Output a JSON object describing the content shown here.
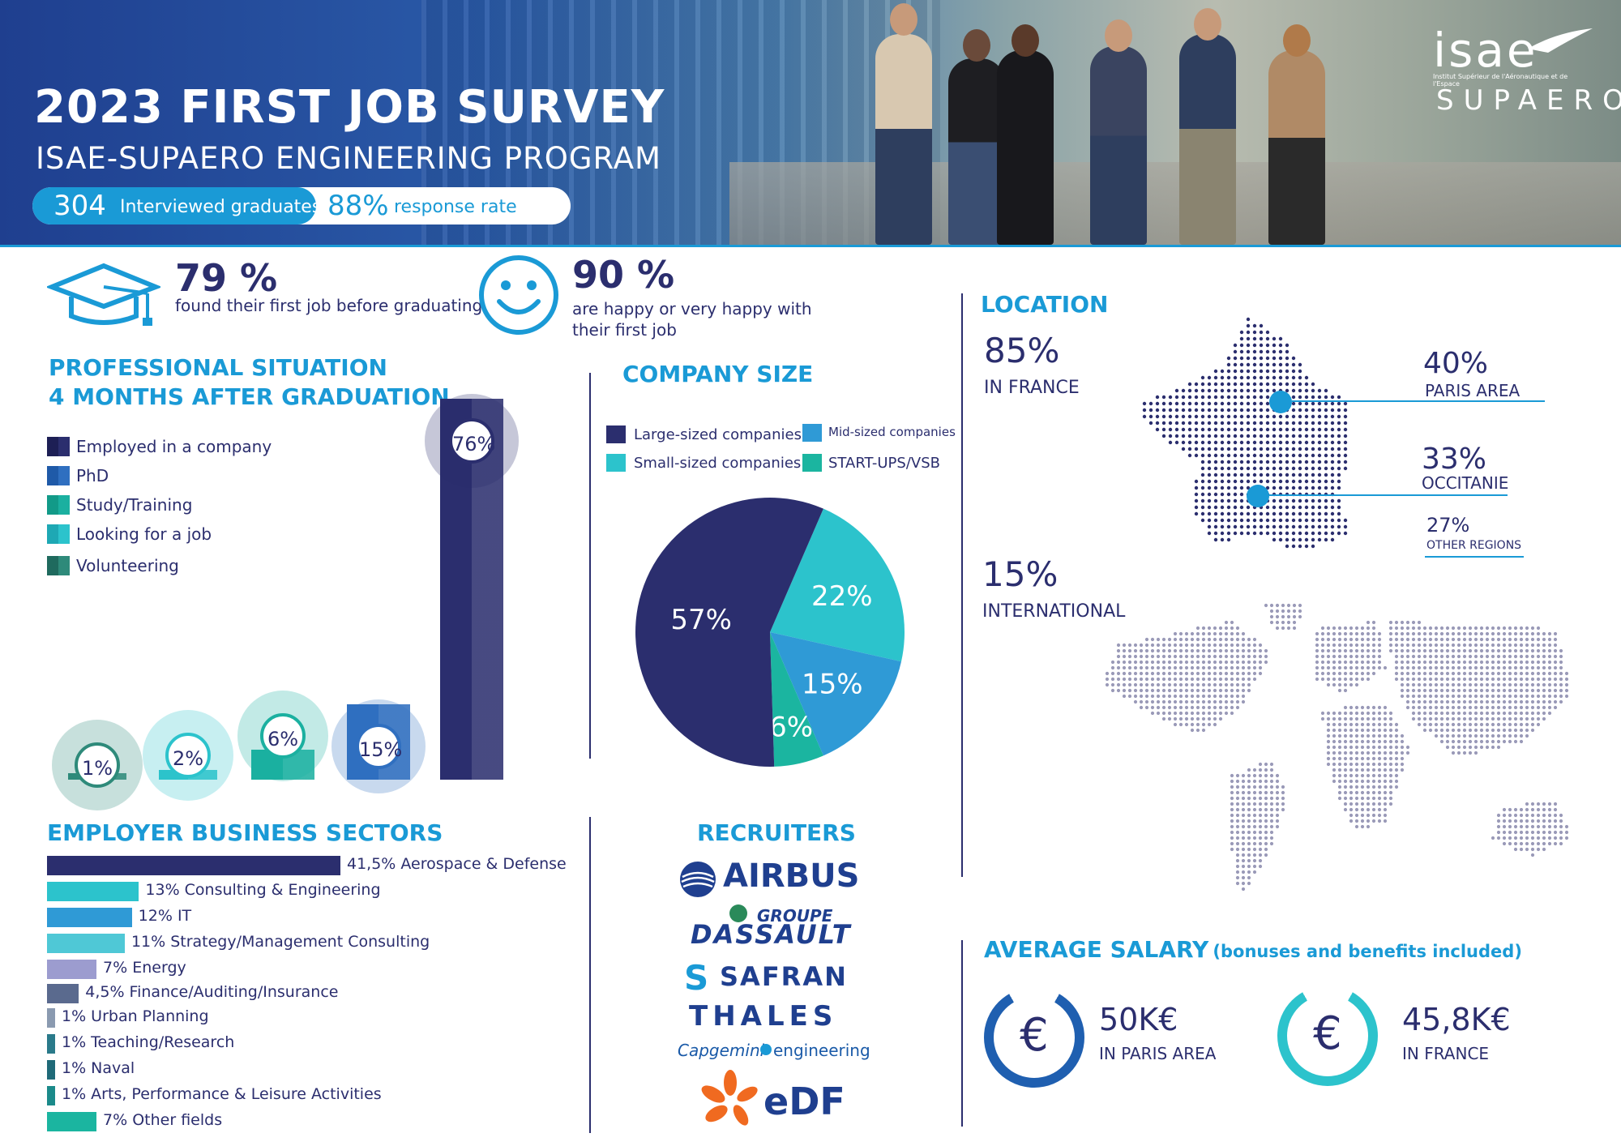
{
  "header": {
    "title": "2023 FIRST JOB SURVEY",
    "subtitle": "ISAE-SUPAERO ENGINEERING PROGRAM",
    "graduates_num": "304",
    "graduates_label": "Interviewed graduates",
    "response_num": "88%",
    "response_label": "response rate",
    "logo_top": "isae",
    "logo_small": "Institut Supérieur de l'Aéronautique et de l'Espace",
    "logo_bottom": "SUPAERO"
  },
  "key_stats": [
    {
      "value": "79 %",
      "label": "found their first job before graduating",
      "icon": "graduation-cap-icon"
    },
    {
      "value": "90 %",
      "label": "are happy or very happy with their first job",
      "icon": "smiley-face-icon"
    }
  ],
  "professional_situation": {
    "heading_line1": "PROFESSIONAL SITUATION",
    "heading_line2": "4 MONTHS AFTER GRADUATION",
    "legend": [
      "Employed in a company",
      "PhD",
      "Study/Training",
      "Looking for a job",
      "Volunteering"
    ],
    "colors": [
      "#2b2e6e",
      "#2f6fc0",
      "#1bb0a0",
      "#2cc3cc",
      "#2e8a7a"
    ]
  },
  "chart_data": [
    {
      "type": "bar",
      "categories": [
        "Employed in a company",
        "PhD",
        "Study/Training",
        "Looking for a job",
        "Volunteering"
      ],
      "values": [
        76,
        15,
        6,
        2,
        1
      ],
      "labels": [
        "76%",
        "15%",
        "6%",
        "2%",
        "1%"
      ],
      "title": "PROFESSIONAL SITUATION 4 MONTHS AFTER GRADUATION"
    },
    {
      "type": "pie",
      "categories": [
        "Large-sized companies",
        "Small-sized companies",
        "Mid-sized companies",
        "START-UPS/VSB"
      ],
      "values": [
        57,
        22,
        15,
        6
      ],
      "labels": [
        "57%",
        "22%",
        "15%",
        "6%"
      ],
      "colors": [
        "#2b2e6e",
        "#2cc3cc",
        "#2f9ad6",
        "#1bb5a0"
      ],
      "title": "COMPANY SIZE"
    },
    {
      "type": "bar",
      "title": "EMPLOYER BUSINESS SECTORS",
      "categories": [
        "Aerospace & Defense",
        "Consulting & Engineering",
        "IT",
        "Strategy/Management Consulting",
        "Energy",
        "Finance/Auditing/Insurance",
        "Urban Planning",
        "Teaching/Research",
        "Naval",
        "Arts, Performance & Leisure Activities",
        "Other fields"
      ],
      "values": [
        41.5,
        13,
        12,
        11,
        7,
        4.5,
        1,
        1,
        1,
        1,
        7
      ],
      "labels": [
        "41,5%",
        "13%",
        "12%",
        "11%",
        "7%",
        "4,5%",
        "1%",
        "1%",
        "1%",
        "1%",
        "7%"
      ],
      "colors": [
        "#2b2e6e",
        "#2cc3cc",
        "#2f9ad6",
        "#4fc8d6",
        "#9c9ccf",
        "#5a6a8e",
        "#8a9ab0",
        "#2a7a8a",
        "#1f6a78",
        "#1b8a8a",
        "#1bb5a0"
      ]
    }
  ],
  "company_size": {
    "heading": "COMPANY SIZE",
    "legend": [
      "Large-sized companies",
      "Mid-sized companies",
      "Small-sized companies",
      "START-UPS/VSB"
    ]
  },
  "sectors": {
    "heading": "EMPLOYER BUSINESS SECTORS",
    "items": [
      {
        "pct": "41,5%",
        "label": "Aerospace & Defense"
      },
      {
        "pct": "13%",
        "label": "Consulting & Engineering"
      },
      {
        "pct": "12%",
        "label": "IT"
      },
      {
        "pct": "11%",
        "label": "Strategy/Management Consulting"
      },
      {
        "pct": "7%",
        "label": "Energy"
      },
      {
        "pct": "4,5%",
        "label": "Finance/Auditing/Insurance"
      },
      {
        "pct": "1%",
        "label": "Urban Planning"
      },
      {
        "pct": "1%",
        "label": "Teaching/Research"
      },
      {
        "pct": "1%",
        "label": "Naval"
      },
      {
        "pct": "1%",
        "label": "Arts, Performance & Leisure Activities"
      },
      {
        "pct": "7%",
        "label": "Other fields"
      }
    ]
  },
  "recruiters": {
    "heading": "RECRUITERS",
    "logos": [
      "AIRBUS",
      "GROUPE",
      "DASSAULT",
      "SAFRAN",
      "THALES",
      "Capgemini",
      "engineering",
      "eDF"
    ]
  },
  "location": {
    "heading": "LOCATION",
    "france_pct": "85%",
    "france_label": "IN FRANCE",
    "paris_pct": "40%",
    "paris_label": "PARIS AREA",
    "occitanie_pct": "33%",
    "occitanie_label": "OCCITANIE",
    "other_pct": "27%",
    "other_label": "OTHER REGIONS",
    "intl_pct": "15%",
    "intl_label": "INTERNATIONAL"
  },
  "salary": {
    "heading": "AVERAGE SALARY",
    "heading_note": "(bonuses and benefits included)",
    "currency": "€",
    "paris_value": "50K€",
    "paris_label": "IN PARIS AREA",
    "france_value": "45,8K€",
    "france_label": "IN FRANCE",
    "colors": [
      "#1f5fb0",
      "#2cc3cc"
    ]
  }
}
